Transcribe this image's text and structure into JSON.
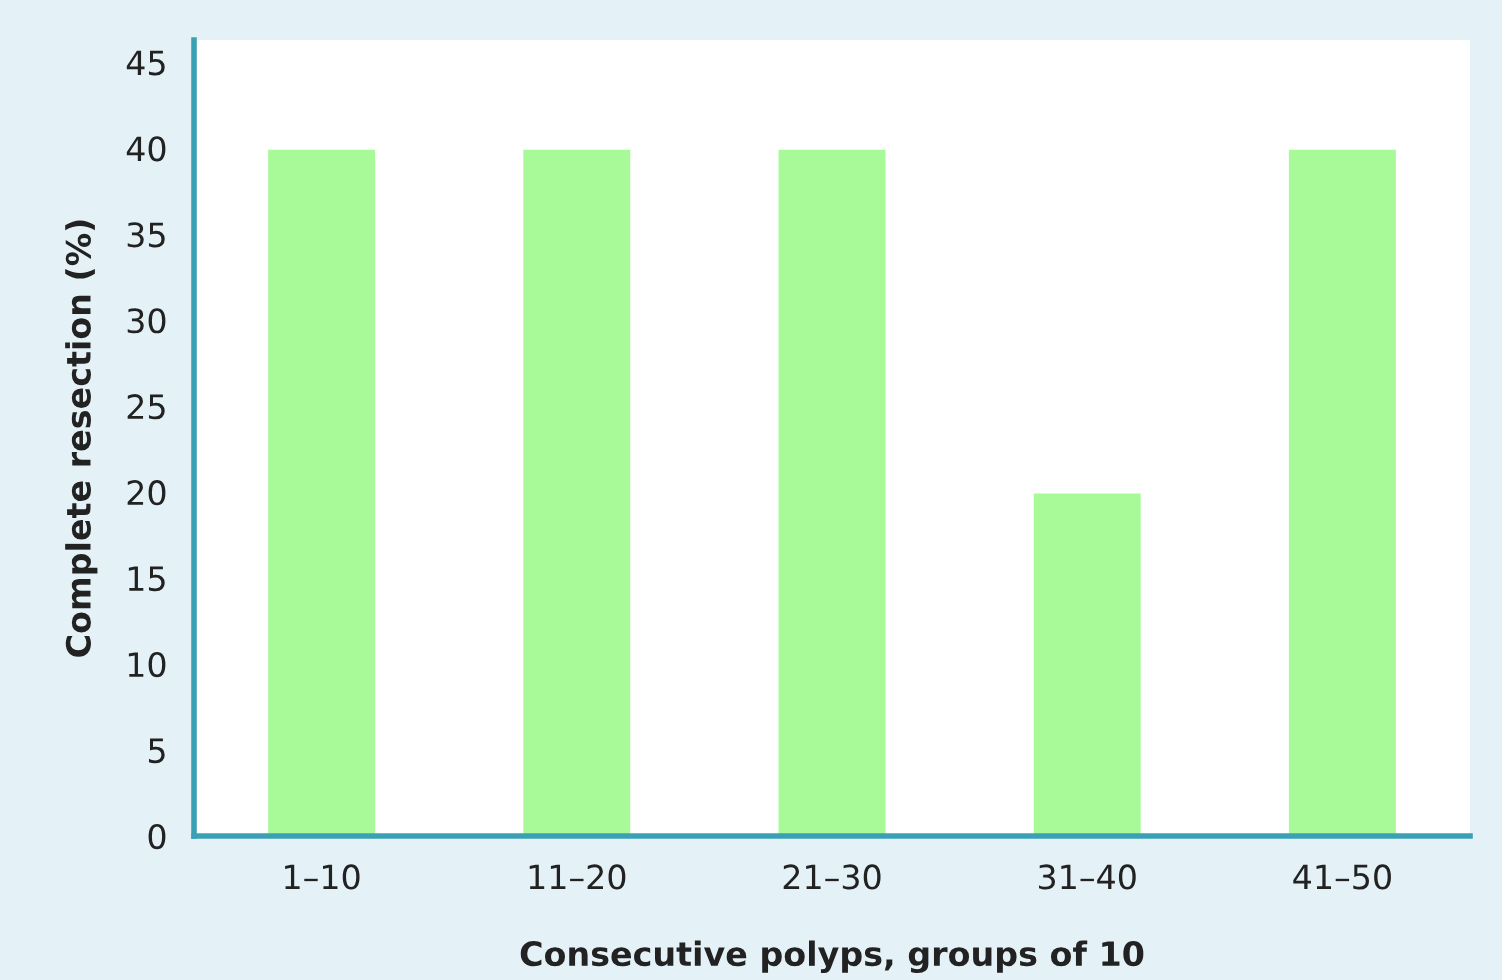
{
  "chart_data": {
    "type": "bar",
    "xlabel": "Consecutive polyps, groups of 10",
    "ylabel": "Complete resection (%)",
    "categories": [
      "1–10",
      "11–20",
      "21–30",
      "31–40",
      "41–50"
    ],
    "values": [
      40,
      40,
      40,
      20,
      40
    ],
    "color": "#a8fa98",
    "ylim": [
      0,
      46.3
    ],
    "yticks": [
      0,
      5,
      10,
      15,
      20,
      25,
      30,
      35,
      40,
      45
    ],
    "grid": false
  }
}
